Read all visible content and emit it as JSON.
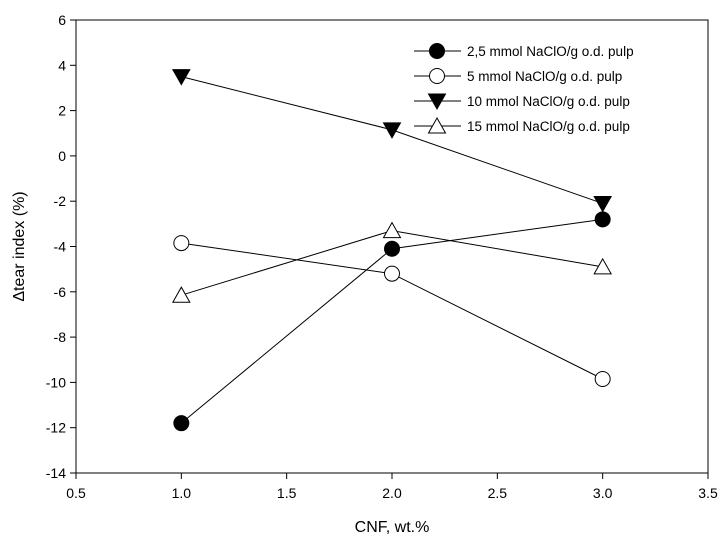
{
  "chart_data": {
    "type": "line",
    "title": "",
    "xlabel": "CNF, wt.%",
    "ylabel": "Δtear index (%)",
    "xlim": [
      0.5,
      3.5
    ],
    "ylim": [
      -14,
      6
    ],
    "xticks": [
      0.5,
      1.0,
      1.5,
      2.0,
      2.5,
      3.0,
      3.5
    ],
    "xtick_labels": [
      "0.5",
      "1.0",
      "1.5",
      "2.0",
      "2.5",
      "3.0",
      "3.5"
    ],
    "yticks": [
      -14,
      -12,
      -10,
      -8,
      -6,
      -4,
      -2,
      0,
      2,
      4,
      6
    ],
    "ytick_labels": [
      "-14",
      "-12",
      "-10",
      "-8",
      "-6",
      "-4",
      "-2",
      "0",
      "2",
      "4",
      "6"
    ],
    "grid": false,
    "legend_position": "top-right",
    "x": [
      1.0,
      2.0,
      3.0
    ],
    "series": [
      {
        "name": "2,5 mmol NaClO/g o.d. pulp",
        "marker": "circle-filled",
        "values": [
          -11.8,
          -4.1,
          -2.8
        ]
      },
      {
        "name": "5 mmol NaClO/g o.d. pulp",
        "marker": "circle-open",
        "values": [
          -3.85,
          -5.2,
          -9.85
        ]
      },
      {
        "name": "10 mmol NaClO/g o.d. pulp",
        "marker": "triangle-down-filled",
        "values": [
          3.5,
          1.15,
          -2.1
        ]
      },
      {
        "name": "15 mmol NaClO/g o.d. pulp",
        "marker": "triangle-up-open",
        "values": [
          -6.15,
          -3.3,
          -4.9
        ]
      }
    ]
  }
}
